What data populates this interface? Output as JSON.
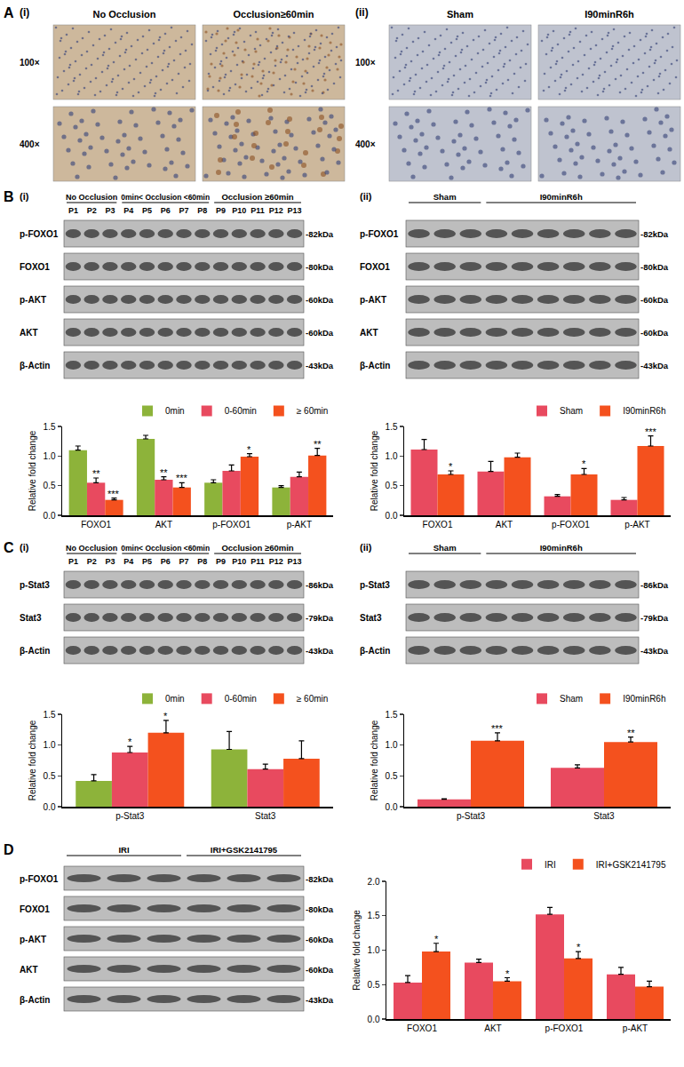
{
  "panels": {
    "A": {
      "label": "A",
      "parts": [
        {
          "label": "(i)",
          "columns": [
            "No Occlusion",
            "Occlusion≥60min"
          ],
          "rows": [
            "100×",
            "400×"
          ]
        },
        {
          "label": "(ii)",
          "columns": [
            "Sham",
            "I90minR6h"
          ],
          "rows": [
            "100×",
            "400×"
          ]
        }
      ]
    },
    "B": {
      "label": "B",
      "parts": [
        {
          "label": "(i)",
          "groups": [
            {
              "name": "No Occlusion",
              "lanes": [
                "P1",
                "P2",
                "P3"
              ]
            },
            {
              "name": "0min< Occlusion <60min",
              "lanes": [
                "P4",
                "P5",
                "P6",
                "P7",
                "P8"
              ]
            },
            {
              "name": "Occlusion ≥60min",
              "lanes": [
                "P9",
                "P10",
                "P11",
                "P12",
                "P13"
              ]
            }
          ],
          "blots": [
            {
              "name": "p-FOXO1",
              "size": "-82kDa"
            },
            {
              "name": "FOXO1",
              "size": "-80kDa"
            },
            {
              "name": "p-AKT",
              "size": "-60kDa"
            },
            {
              "name": "AKT",
              "size": "-60kDa"
            },
            {
              "name": "β-Actin",
              "size": "-43kDa"
            }
          ]
        },
        {
          "label": "(ii)",
          "groups": [
            {
              "name": "Sham",
              "lanes": 3
            },
            {
              "name": "I90minR6h",
              "lanes": 6
            }
          ],
          "blots": [
            {
              "name": "p-FOXO1",
              "size": "-82kDa"
            },
            {
              "name": "FOXO1",
              "size": "-80kDa"
            },
            {
              "name": "p-AKT",
              "size": "-60kDa"
            },
            {
              "name": "AKT",
              "size": "-60kDa"
            },
            {
              "name": "β-Actin",
              "size": "-43kDa"
            }
          ]
        }
      ]
    },
    "C": {
      "label": "C",
      "parts": [
        {
          "label": "(i)",
          "groups": [
            {
              "name": "No Occlusion",
              "lanes": [
                "P1",
                "P2",
                "P3"
              ]
            },
            {
              "name": "0min< Occlusion <60min",
              "lanes": [
                "P4",
                "P5",
                "P6",
                "P7",
                "P8"
              ]
            },
            {
              "name": "Occlusion ≥60min",
              "lanes": [
                "P9",
                "P10",
                "P11",
                "P12",
                "P13"
              ]
            }
          ],
          "blots": [
            {
              "name": "p-Stat3",
              "size": "-86kDa"
            },
            {
              "name": "Stat3",
              "size": "-79kDa"
            },
            {
              "name": "β-Actin",
              "size": "-43kDa"
            }
          ]
        },
        {
          "label": "(ii)",
          "groups": [
            {
              "name": "Sham",
              "lanes": 3
            },
            {
              "name": "I90minR6h",
              "lanes": 6
            }
          ],
          "blots": [
            {
              "name": "p-Stat3",
              "size": "-86kDa"
            },
            {
              "name": "Stat3",
              "size": "-79kDa"
            },
            {
              "name": "β-Actin",
              "size": "-43kDa"
            }
          ]
        }
      ]
    },
    "D": {
      "label": "D",
      "parts": [
        {
          "groups": [
            {
              "name": "IRI",
              "lanes": 3
            },
            {
              "name": "IRI+GSK2141795",
              "lanes": 3
            }
          ],
          "blots": [
            {
              "name": "p-FOXO1",
              "size": "-82kDa"
            },
            {
              "name": "FOXO1",
              "size": "-80kDa"
            },
            {
              "name": "p-AKT",
              "size": "-60kDa"
            },
            {
              "name": "AKT",
              "size": "-60kDa"
            },
            {
              "name": "β-Actin",
              "size": "-43kDa"
            }
          ]
        }
      ]
    }
  },
  "chart_data": [
    {
      "type": "bar",
      "y_label": "Relative fold change",
      "categories": [
        "FOXO1",
        "AKT",
        "p-FOXO1",
        "p-AKT"
      ],
      "series": [
        {
          "name": "0min",
          "color": "#8DB33A",
          "values": [
            1.1,
            1.29,
            0.55,
            0.47
          ],
          "errors": [
            0.07,
            0.06,
            0.05,
            0.03
          ],
          "significance": [
            null,
            null,
            null,
            null
          ]
        },
        {
          "name": "0-60min",
          "color": "#E84A5F",
          "values": [
            0.55,
            0.6,
            0.75,
            0.65
          ],
          "errors": [
            0.08,
            0.05,
            0.1,
            0.08
          ],
          "significance": [
            "**",
            "**",
            null,
            null
          ]
        },
        {
          "name": "≥ 60min",
          "color": "#F4511E",
          "values": [
            0.26,
            0.47,
            0.99,
            1.01
          ],
          "errors": [
            0.03,
            0.08,
            0.05,
            0.12
          ],
          "significance": [
            "***",
            "***",
            "*",
            "**"
          ]
        }
      ],
      "ylim": [
        0,
        1.5
      ],
      "yticks": [
        {
          "value": 0,
          "label": "0.0"
        },
        {
          "value": 0.5,
          "label": "0.5"
        },
        {
          "value": 1,
          "label": "1.0"
        },
        {
          "value": 1.5,
          "label": "1.5"
        }
      ],
      "grid": false,
      "legend": "top"
    },
    {
      "type": "bar",
      "y_label": "Relative fold change",
      "categories": [
        "FOXO1",
        "AKT",
        "p-FOXO1",
        "p-AKT"
      ],
      "series": [
        {
          "name": "Sham",
          "color": "#E84A5F",
          "values": [
            1.11,
            0.74,
            0.32,
            0.26
          ],
          "errors": [
            0.17,
            0.17,
            0.03,
            0.04
          ],
          "significance": [
            null,
            null,
            null,
            null
          ]
        },
        {
          "name": "I90minR6h",
          "color": "#F4511E",
          "values": [
            0.69,
            0.98,
            0.69,
            1.17
          ],
          "errors": [
            0.06,
            0.07,
            0.1,
            0.17
          ],
          "significance": [
            "*",
            null,
            "*",
            "***"
          ]
        }
      ],
      "ylim": [
        0,
        1.5
      ],
      "yticks": [
        {
          "value": 0,
          "label": "0.0"
        },
        {
          "value": 0.5,
          "label": "0.5"
        },
        {
          "value": 1,
          "label": "1.0"
        },
        {
          "value": 1.5,
          "label": "1.5"
        }
      ],
      "grid": false,
      "legend": "top"
    },
    {
      "type": "bar",
      "y_label": "Relative fold change",
      "categories": [
        "p-Stat3",
        "Stat3"
      ],
      "series": [
        {
          "name": "0min",
          "color": "#8DB33A",
          "values": [
            0.42,
            0.93
          ],
          "errors": [
            0.1,
            0.29
          ],
          "significance": [
            null,
            null
          ]
        },
        {
          "name": "0-60min",
          "color": "#E84A5F",
          "values": [
            0.88,
            0.61
          ],
          "errors": [
            0.1,
            0.08
          ],
          "significance": [
            "*",
            null
          ]
        },
        {
          "name": "≥ 60min",
          "color": "#F4511E",
          "values": [
            1.2,
            0.78
          ],
          "errors": [
            0.2,
            0.29
          ],
          "significance": [
            "*",
            null
          ]
        }
      ],
      "ylim": [
        0,
        1.5
      ],
      "yticks": [
        {
          "value": 0,
          "label": "0.0"
        },
        {
          "value": 0.5,
          "label": "0.5"
        },
        {
          "value": 1,
          "label": "1.0"
        },
        {
          "value": 1.5,
          "label": "1.5"
        }
      ],
      "grid": false,
      "legend": "top"
    },
    {
      "type": "bar",
      "y_label": "Relative fold change",
      "categories": [
        "p-Stat3",
        "Stat3"
      ],
      "series": [
        {
          "name": "Sham",
          "color": "#E84A5F",
          "values": [
            0.12,
            0.63
          ],
          "errors": [
            0.01,
            0.05
          ],
          "significance": [
            null,
            null
          ]
        },
        {
          "name": "I90minR6h",
          "color": "#F4511E",
          "values": [
            1.07,
            1.05
          ],
          "errors": [
            0.13,
            0.08
          ],
          "significance": [
            "***",
            "**"
          ]
        }
      ],
      "ylim": [
        0,
        1.5
      ],
      "yticks": [
        {
          "value": 0,
          "label": "0.0"
        },
        {
          "value": 0.5,
          "label": "0.5"
        },
        {
          "value": 1,
          "label": "1.0"
        },
        {
          "value": 1.5,
          "label": "1.5"
        }
      ],
      "grid": false,
      "legend": "top"
    },
    {
      "type": "bar",
      "y_label": "Relative fold change",
      "categories": [
        "FOXO1",
        "AKT",
        "p-FOXO1",
        "p-AKT"
      ],
      "series": [
        {
          "name": "IRI",
          "color": "#E84A5F",
          "values": [
            0.53,
            0.82,
            1.52,
            0.65
          ],
          "errors": [
            0.1,
            0.05,
            0.1,
            0.1
          ],
          "significance": [
            null,
            null,
            null,
            null
          ]
        },
        {
          "name": "IRI+GSK2141795",
          "color": "#F4511E",
          "values": [
            0.98,
            0.55,
            0.88,
            0.47
          ],
          "errors": [
            0.12,
            0.05,
            0.1,
            0.08
          ],
          "significance": [
            "*",
            "*",
            "*",
            null
          ]
        }
      ],
      "ylim": [
        0,
        2
      ],
      "yticks": [
        {
          "value": 0,
          "label": "0.0"
        },
        {
          "value": 0.5,
          "label": "0.5"
        },
        {
          "value": 1,
          "label": "1.0"
        },
        {
          "value": 1.5,
          "label": "1.5"
        },
        {
          "value": 2,
          "label": "2.0"
        }
      ],
      "grid": false,
      "legend": "top"
    }
  ]
}
